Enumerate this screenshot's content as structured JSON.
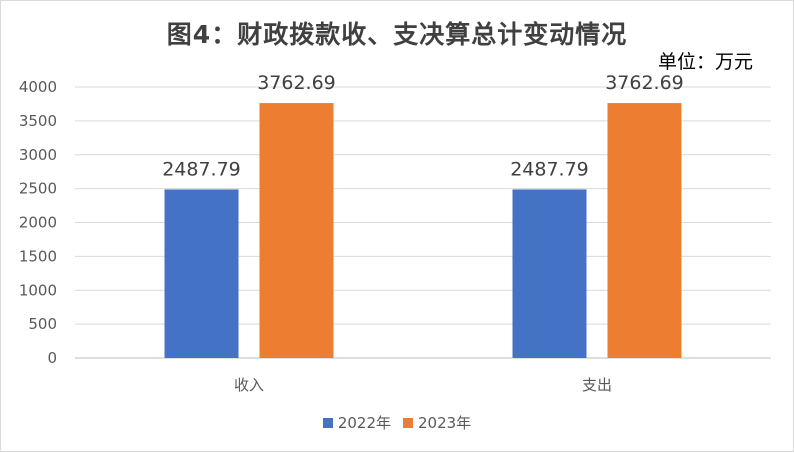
{
  "chart_data": {
    "type": "bar",
    "title": "图4：财政拨款收、支决算总计变动情况",
    "unit": "单位：万元",
    "categories": [
      "收入",
      "支出"
    ],
    "series": [
      {
        "name": "2022年",
        "color": "#4472c4",
        "values": [
          2487.79,
          2487.79
        ]
      },
      {
        "name": "2023年",
        "color": "#ed7d31",
        "values": [
          3762.69,
          3762.69
        ]
      }
    ],
    "yticks": [
      0,
      500,
      1000,
      1500,
      2000,
      2500,
      3000,
      3500,
      4000
    ],
    "ylim": [
      0,
      4000
    ],
    "grid": true,
    "legend_position": "bottom"
  }
}
